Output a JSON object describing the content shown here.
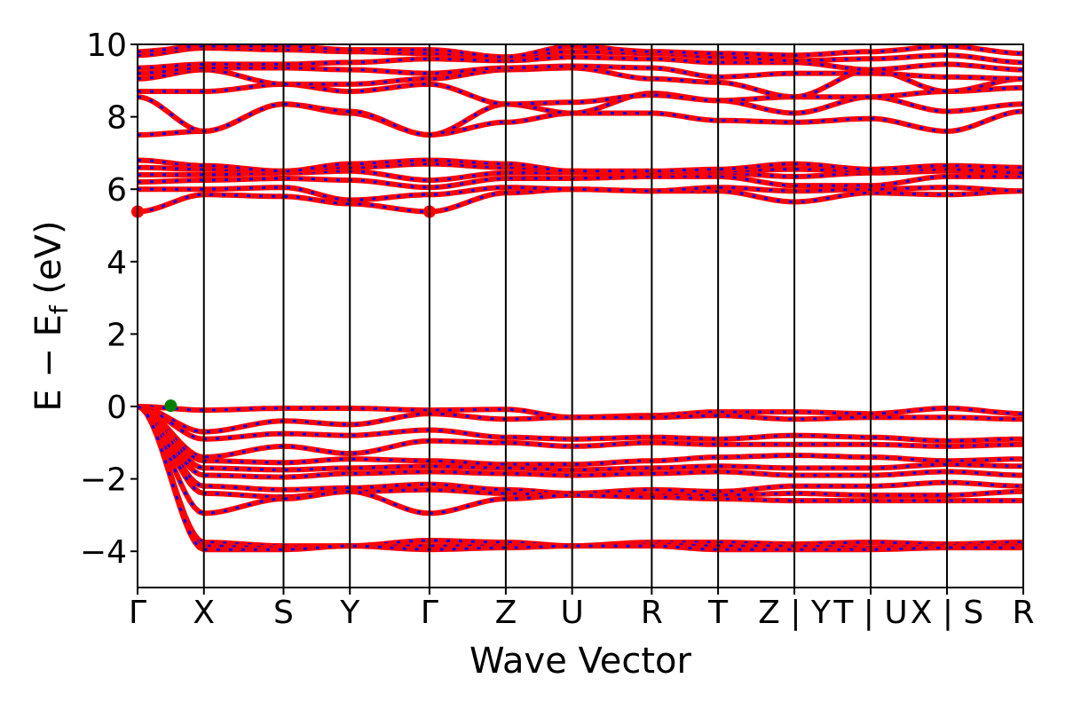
{
  "chart_data": {
    "type": "line",
    "title": "",
    "xlabel": "Wave Vector",
    "ylabel": "E − E",
    "ylabel_subscript": "f",
    "ylabel_unit": " (eV)",
    "ylim": [
      -5,
      10
    ],
    "y_ticks": [
      10,
      8,
      6,
      4,
      2,
      0,
      -2,
      -4
    ],
    "y_tick_labels": [
      "10",
      "8",
      "6",
      "4",
      "2",
      "0",
      "−2",
      "−4"
    ],
    "x_ticks": [
      {
        "label": "Γ",
        "k": 0.0
      },
      {
        "label": "X",
        "k": 0.1
      },
      {
        "label": "S",
        "k": 0.22
      },
      {
        "label": "Y",
        "k": 0.32
      },
      {
        "label": "Γ",
        "k": 0.44
      },
      {
        "label": "Z",
        "k": 0.555
      },
      {
        "label": "U",
        "k": 0.655
      },
      {
        "label": "R",
        "k": 0.775
      },
      {
        "label": "T",
        "k": 0.875
      },
      {
        "label": "Z | Y",
        "k": 0.99
      },
      {
        "label": "T | U",
        "k": 1.105
      },
      {
        "label": "X | S",
        "k": 1.22
      },
      {
        "label": "R",
        "k": 1.335
      }
    ],
    "x_range": [
      0.0,
      1.335
    ],
    "grid": false,
    "line_color": "#ff0000",
    "dash_color": "#0000ff",
    "cbm_color": "#ff0000",
    "vbm_color": "#008000",
    "band_markers": [
      {
        "name": "cbm",
        "k": 0.0,
        "e": 5.38
      },
      {
        "name": "cbm",
        "k": 0.44,
        "e": 5.38
      },
      {
        "name": "vbm",
        "k": 0.05,
        "e": 0.02
      }
    ],
    "segment_endpoints": {
      "valence": [
        [
          0.0,
          -0.1,
          -0.05,
          -0.05,
          -0.1,
          -0.08,
          -0.3,
          -0.25,
          -0.15,
          -0.15,
          -0.2,
          -0.05,
          -0.2
        ],
        [
          0.0,
          -0.7,
          -0.4,
          -0.5,
          -0.2,
          -0.35,
          -0.3,
          -0.3,
          -0.25,
          -0.35,
          -0.3,
          -0.3,
          -0.35
        ],
        [
          0.0,
          -0.9,
          -0.75,
          -0.8,
          -0.65,
          -0.85,
          -0.9,
          -0.85,
          -0.9,
          -0.8,
          -0.85,
          -0.95,
          -0.9
        ],
        [
          0.0,
          -1.4,
          -1.1,
          -1.3,
          -0.95,
          -1.0,
          -1.1,
          -1.0,
          -1.05,
          -1.05,
          -1.05,
          -1.1,
          -1.05
        ],
        [
          0.0,
          -1.5,
          -1.55,
          -1.45,
          -1.5,
          -1.6,
          -1.6,
          -1.5,
          -1.4,
          -1.35,
          -1.4,
          -1.5,
          -1.45
        ],
        [
          0.0,
          -1.7,
          -1.75,
          -1.7,
          -1.65,
          -1.7,
          -1.75,
          -1.7,
          -1.65,
          -1.7,
          -1.7,
          -1.6,
          -1.65
        ],
        [
          0.0,
          -1.9,
          -1.95,
          -1.85,
          -1.8,
          -1.85,
          -1.9,
          -1.85,
          -1.8,
          -1.9,
          -1.9,
          -1.8,
          -1.9
        ],
        [
          0.0,
          -2.2,
          -2.3,
          -2.25,
          -2.15,
          -2.3,
          -2.4,
          -2.3,
          -2.35,
          -2.2,
          -2.2,
          -2.1,
          -2.2
        ],
        [
          0.0,
          -2.4,
          -2.5,
          -2.35,
          -2.3,
          -2.4,
          -2.45,
          -2.45,
          -2.45,
          -2.4,
          -2.45,
          -2.45,
          -2.35
        ],
        [
          0.0,
          -2.95,
          -2.55,
          -2.35,
          -2.95,
          -2.55,
          -2.45,
          -2.5,
          -2.55,
          -2.6,
          -2.6,
          -2.6,
          -2.6
        ],
        [
          0.0,
          -3.75,
          -3.85,
          -3.85,
          -3.7,
          -3.75,
          -3.85,
          -3.75,
          -3.75,
          -3.8,
          -3.75,
          -3.8,
          -3.75
        ],
        [
          0.0,
          -3.85,
          -3.9,
          -3.85,
          -3.85,
          -3.85,
          -3.85,
          -3.8,
          -3.85,
          -3.85,
          -3.9,
          -3.85,
          -3.85
        ],
        [
          0.0,
          -3.95,
          -3.95,
          -3.85,
          -3.95,
          -3.9,
          -3.85,
          -3.85,
          -3.95,
          -3.95,
          -3.95,
          -3.9,
          -3.9
        ]
      ],
      "conduction": [
        [
          5.38,
          5.85,
          5.8,
          5.6,
          5.38,
          5.9,
          6.0,
          5.95,
          5.95,
          5.65,
          5.9,
          5.85,
          5.95
        ],
        [
          6.0,
          6.0,
          6.05,
          5.7,
          5.85,
          6.05,
          6.0,
          5.95,
          6.05,
          5.95,
          6.0,
          6.05,
          5.95
        ],
        [
          6.2,
          6.25,
          6.3,
          6.25,
          6.05,
          6.3,
          6.3,
          6.35,
          6.35,
          6.1,
          6.1,
          6.35,
          6.35
        ],
        [
          6.4,
          6.4,
          6.45,
          6.5,
          6.25,
          6.45,
          6.45,
          6.45,
          6.45,
          6.35,
          6.45,
          6.5,
          6.45
        ],
        [
          6.6,
          6.55,
          6.5,
          6.6,
          6.7,
          6.6,
          6.5,
          6.45,
          6.5,
          6.55,
          6.5,
          6.55,
          6.45
        ],
        [
          6.8,
          6.65,
          6.5,
          6.7,
          6.8,
          6.7,
          6.5,
          6.5,
          6.55,
          6.7,
          6.55,
          6.65,
          6.6
        ],
        [
          7.5,
          7.6,
          8.35,
          8.1,
          7.5,
          7.85,
          8.1,
          8.1,
          7.9,
          7.85,
          7.95,
          7.6,
          8.15
        ],
        [
          8.55,
          7.6,
          8.35,
          8.15,
          7.5,
          8.35,
          8.1,
          8.65,
          8.45,
          8.1,
          8.55,
          8.15,
          8.35
        ],
        [
          8.7,
          8.7,
          8.9,
          8.7,
          8.9,
          8.35,
          8.4,
          8.6,
          8.45,
          8.55,
          8.55,
          8.7,
          8.8
        ],
        [
          9.05,
          9.3,
          8.9,
          8.9,
          9.05,
          9.3,
          9.35,
          9.05,
          8.95,
          8.55,
          9.3,
          8.7,
          9.05
        ],
        [
          9.2,
          9.35,
          9.35,
          9.3,
          9.2,
          9.35,
          9.4,
          9.35,
          9.1,
          9.2,
          9.2,
          9.1,
          9.05
        ],
        [
          9.35,
          9.45,
          9.45,
          9.5,
          9.6,
          9.55,
          9.65,
          9.6,
          9.5,
          9.5,
          9.3,
          9.45,
          9.3
        ],
        [
          9.7,
          9.9,
          9.85,
          9.8,
          9.75,
          9.65,
          9.8,
          9.75,
          9.65,
          9.55,
          9.6,
          9.7,
          9.5
        ],
        [
          9.8,
          9.95,
          9.95,
          9.85,
          9.85,
          9.65,
          9.95,
          9.8,
          9.75,
          9.7,
          9.8,
          9.95,
          9.75
        ]
      ]
    }
  }
}
